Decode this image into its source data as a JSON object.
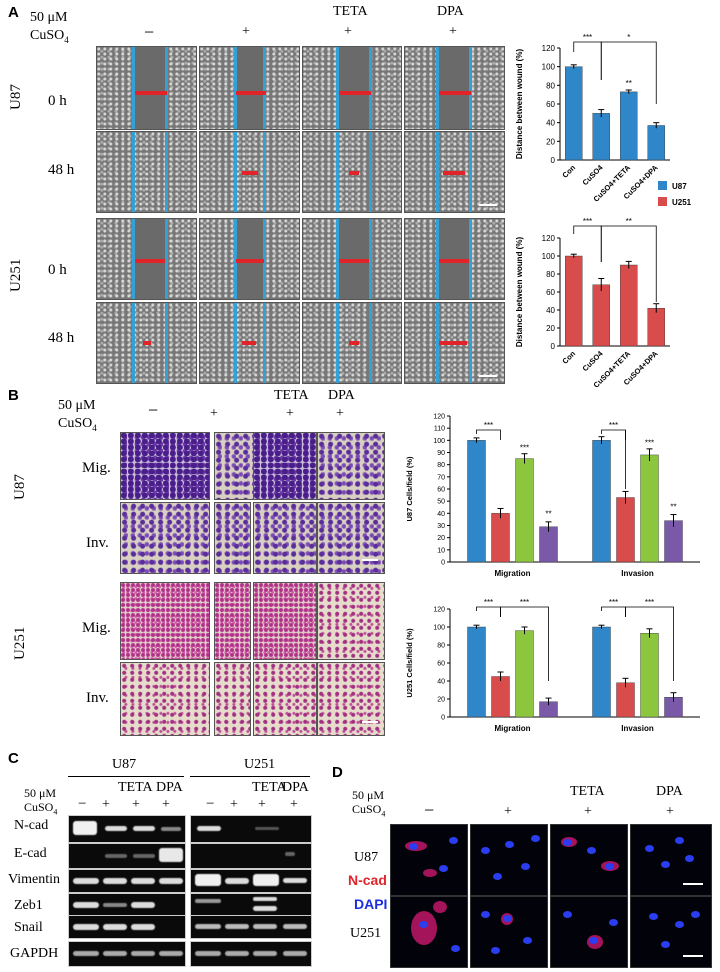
{
  "panelA": {
    "label": "A",
    "cond_line1": "50 μM",
    "cond_line2": "CuSO",
    "cond_sub": "4",
    "col_marks": [
      "−",
      "+",
      "+",
      "+"
    ],
    "col_headers": [
      "",
      "",
      "TETA",
      "DPA"
    ],
    "cell_lines": [
      "U87",
      "U251"
    ],
    "times": [
      "0 h",
      "48 h"
    ]
  },
  "panelB": {
    "label": "B",
    "cond_line1": "50 μM",
    "cond_line2": "CuSO",
    "cond_sub": "4",
    "col_marks": [
      "−",
      "+",
      "+",
      "+"
    ],
    "col_headers": [
      "",
      "",
      "TETA",
      "DPA"
    ],
    "cell_lines": [
      "U87",
      "U251"
    ],
    "rows": [
      "Mig.",
      "Inv."
    ]
  },
  "panelC": {
    "label": "C",
    "groups": [
      "U87",
      "U251"
    ],
    "cond_line1": "50 μM",
    "cond_line2": "CuSO",
    "cond_sub": "4",
    "marks": [
      "−",
      "+",
      "+",
      "+",
      "−",
      "+",
      "+",
      "+"
    ],
    "headers": [
      "TETA",
      "DPA",
      "TETA",
      "DPA"
    ],
    "genes": [
      "N-cad",
      "E-cad",
      "Vimentin",
      "Zeb1",
      "Snail",
      "GAPDH"
    ]
  },
  "panelD": {
    "label": "D",
    "cond_line1": "50 μM",
    "cond_line2": "CuSO",
    "cond_sub": "4",
    "col_marks": [
      "−",
      "+",
      "+",
      "+"
    ],
    "col_headers": [
      "",
      "",
      "TETA",
      "DPA"
    ],
    "cell_lines": [
      "U87",
      "U251"
    ],
    "stain1": "N-cad",
    "stain2": "DAPI",
    "stain1_color": "#e0242a",
    "stain2_color": "#1a2ee0"
  },
  "colors": {
    "U87": "#2f86c8",
    "U251": "#d94c4c",
    "green": "#8cc63f",
    "purple": "#7a5aa8"
  },
  "chart_data": [
    {
      "type": "bar",
      "ylabel": "Distance between wound (%)",
      "categories": [
        "Con",
        "CuSO4",
        "CuSO4+TETA",
        "CuSO4+DPA"
      ],
      "values": [
        100,
        50,
        73,
        37
      ],
      "errors": [
        2,
        4,
        2,
        3
      ],
      "ylim": [
        0,
        120
      ],
      "yticks": [
        "0",
        "20",
        "40",
        "60",
        "80",
        "100",
        "120"
      ],
      "sig": [
        "***",
        "*",
        "**"
      ],
      "color": "#2f86c8",
      "legend": [
        {
          "name": "U87",
          "color": "#2f86c8"
        },
        {
          "name": "U251",
          "color": "#d94c4c"
        }
      ]
    },
    {
      "type": "bar",
      "ylabel": "Distance between wound (%)",
      "categories": [
        "Con",
        "CuSO4",
        "CuSO4+TETA",
        "CuSO4+DPA"
      ],
      "values": [
        100,
        68,
        90,
        42
      ],
      "errors": [
        2,
        7,
        4,
        5
      ],
      "ylim": [
        0,
        120
      ],
      "yticks": [
        "0",
        "20",
        "40",
        "60",
        "80",
        "100",
        "120"
      ],
      "sig": [
        "***",
        "**"
      ],
      "color": "#d94c4c"
    },
    {
      "type": "bar",
      "ylabel": "U87 Cells/field (%)",
      "categories": [
        "Migration",
        "Invasion"
      ],
      "series": [
        {
          "values": [
            100,
            100
          ],
          "errors": [
            2,
            3
          ],
          "color": "#2f86c8"
        },
        {
          "values": [
            40,
            53
          ],
          "errors": [
            4,
            5
          ],
          "color": "#d94c4c"
        },
        {
          "values": [
            85,
            88
          ],
          "errors": [
            4,
            5
          ],
          "color": "#8cc63f"
        },
        {
          "values": [
            29,
            34
          ],
          "errors": [
            4,
            5
          ],
          "color": "#7a5aa8"
        }
      ],
      "ylim": [
        0,
        120
      ],
      "yticks": [
        "0",
        "10",
        "20",
        "30",
        "40",
        "50",
        "60",
        "70",
        "80",
        "90",
        "100",
        "110",
        "120"
      ],
      "sig": [
        "***",
        "***",
        "**",
        "***",
        "***",
        "**"
      ]
    },
    {
      "type": "bar",
      "ylabel": "U251 Cells/field (%)",
      "categories": [
        "Migration",
        "Invasion"
      ],
      "series": [
        {
          "values": [
            100,
            100
          ],
          "errors": [
            2,
            2
          ],
          "color": "#2f86c8"
        },
        {
          "values": [
            45,
            38
          ],
          "errors": [
            5,
            5
          ],
          "color": "#d94c4c"
        },
        {
          "values": [
            96,
            93
          ],
          "errors": [
            4,
            5
          ],
          "color": "#8cc63f"
        },
        {
          "values": [
            17,
            22
          ],
          "errors": [
            4,
            5
          ],
          "color": "#7a5aa8"
        }
      ],
      "ylim": [
        0,
        120
      ],
      "yticks": [
        "0",
        "20",
        "40",
        "60",
        "80",
        "100",
        "120"
      ],
      "sig": [
        "***",
        "***",
        "***",
        "***"
      ]
    }
  ]
}
